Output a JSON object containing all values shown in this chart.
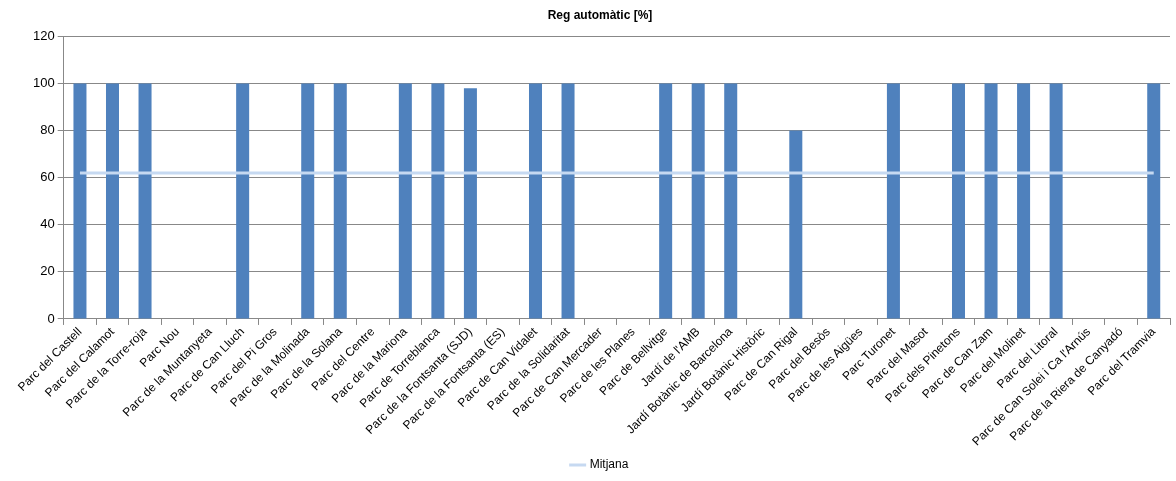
{
  "chart_data": {
    "type": "bar",
    "title": "Reg automàtic [%]",
    "categories": [
      "Parc del Castell",
      "Parc del Calamot",
      "Parc de la Torre-roja",
      "Parc Nou",
      "Parc de la Muntanyeta",
      "Parc de Can Lluch",
      "Parc del Pi Gros",
      "Parc de la Molinada",
      "Parc de la Solana",
      "Parc del Centre",
      "Parc de la Mariona",
      "Parc de Torreblanca",
      "Parc de la Fontsanta (SJD)",
      "Parc de la Fontsanta (ES)",
      "Parc de Can Vidalet",
      "Parc de la Solidaritat",
      "Parc de Can Mercader",
      "Parc de les Planes",
      "Parc de Bellvitge",
      "Jardí de l'AMB",
      "Jardí Botànic de Barcelona",
      "Jardí Botànic Històric",
      "Parc de Can Rigal",
      "Parc del Besòs",
      "Parc de les Aigües",
      "Parc Turonet",
      "Parc del Masot",
      "Parc dels Pinetons",
      "Parc de Can Zam",
      "Parc del Molinet",
      "Parc del Litoral",
      "Parc de Can Solei i Ca l'Arnús",
      "Parc de la Riera de Canyadó",
      "Parc del Tramvia"
    ],
    "series": [
      {
        "color": "#4f81bd",
        "values": [
          100,
          100,
          100,
          0,
          0,
          100,
          0,
          100,
          100,
          0,
          100,
          100,
          98,
          0,
          100,
          100,
          0,
          0,
          100,
          100,
          100,
          0,
          80,
          0,
          0,
          100,
          0,
          100,
          100,
          100,
          100,
          0,
          0,
          100
        ]
      },
      {
        "name": "Mitjana",
        "type": "line",
        "color": "#c6d9f1",
        "values": [
          62,
          62,
          62,
          62,
          62,
          62,
          62,
          62,
          62,
          62,
          62,
          62,
          62,
          62,
          62,
          62,
          62,
          62,
          62,
          62,
          62,
          62,
          62,
          62,
          62,
          62,
          62,
          62,
          62,
          62,
          62,
          62,
          62,
          62
        ]
      }
    ],
    "ylim": [
      0,
      120
    ],
    "yticks": [
      0,
      20,
      40,
      60,
      80,
      100,
      120
    ],
    "grid": "y",
    "legend": "bottom",
    "marker": "none"
  }
}
